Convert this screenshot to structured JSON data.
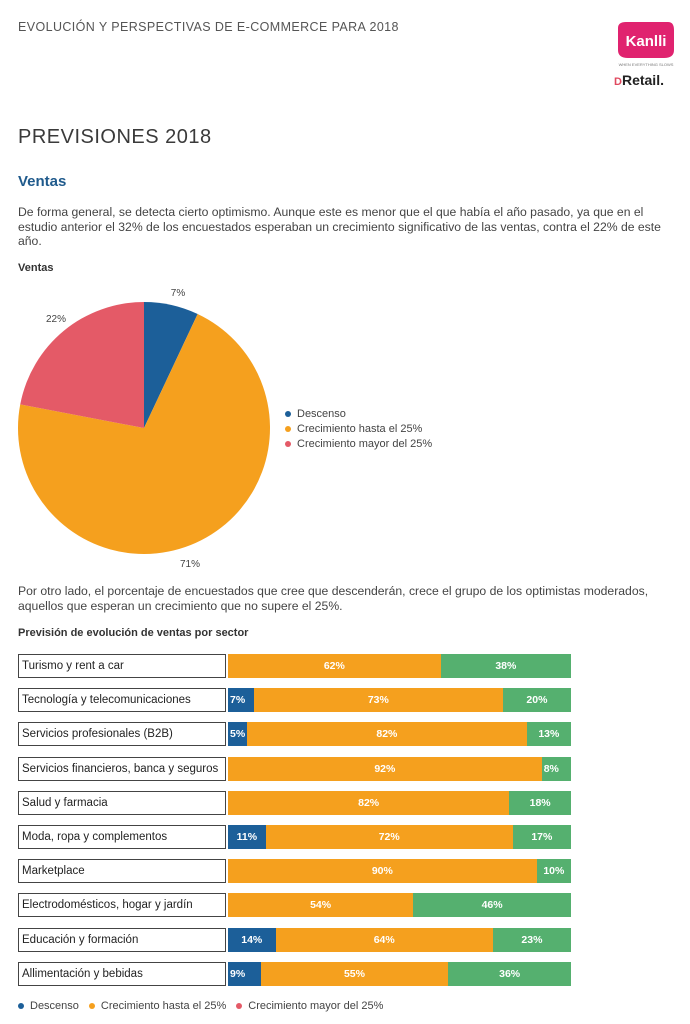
{
  "header": {
    "title": "EVOLUCIÓN Y PERSPECTIVAS DE E-COMMERCE PARA 2018",
    "logo_primary": "Kanlli",
    "logo_primary_tagline": "WHEN EVERYTHING SLOWS",
    "logo_secondary_prefix": "D",
    "logo_secondary": "Retail."
  },
  "page_title": "PREVISIONES 2018",
  "section_title": "Ventas",
  "paragraph1": "De forma general, se detecta cierto optimismo. Aunque este es menor  que el que había el año pasado, ya que en el estudio anterior el 32% de los encuestados esperaban un crecimiento significativo de las ventas, contra el 22% de este año.",
  "paragraph2": "Por otro lado, el porcentaje de encuestados que cree que descenderán, crece el grupo de los optimistas moderados, aquellos que esperan un crecimiento que no supere el 25%.",
  "colors": {
    "descenso": "#1c5f99",
    "crecimiento_hasta": "#f5a01e",
    "crecimiento_mayor": "#e45a67",
    "crecimiento_mayor_bars": "#55b06f"
  },
  "chart_data": [
    {
      "type": "pie",
      "title": "Ventas",
      "categories": [
        "Descenso",
        "Crecimiento hasta el 25%",
        "Crecimiento mayor del 25%"
      ],
      "values": [
        7,
        71,
        22
      ],
      "value_labels": [
        "7%",
        "71%",
        "22%"
      ],
      "legend": "right"
    },
    {
      "type": "bar",
      "orientation": "horizontal-stacked",
      "title": "Previsión de evolución de ventas por sector",
      "categories": [
        "Turismo y rent a car",
        "Tecnología y telecomunicaciones",
        "Servicios profesionales (B2B)",
        "Servicios financieros, banca y seguros",
        "Salud y farmacia",
        "Moda, ropa y complementos",
        "Marketplace",
        "Electrodomésticos, hogar y jardín",
        "Educación y formación",
        "Allimentación y bebidas"
      ],
      "series": [
        {
          "name": "Descenso",
          "values": [
            0,
            7,
            5,
            0,
            0,
            11,
            0,
            0,
            14,
            9
          ],
          "labels": [
            "",
            "7%",
            "5%",
            "",
            "",
            "11%",
            "",
            "",
            "14%",
            "9%"
          ]
        },
        {
          "name": "Crecimiento hasta el 25%",
          "values": [
            62,
            73,
            82,
            92,
            82,
            72,
            90,
            54,
            64,
            55
          ],
          "labels": [
            "62%",
            "73%",
            "82%",
            "92%",
            "82%",
            "72%",
            "90%",
            "54%",
            "64%",
            "55%"
          ]
        },
        {
          "name": "Crecimiento mayor del 25%",
          "values": [
            38,
            20,
            13,
            8,
            18,
            17,
            10,
            46,
            23,
            36
          ],
          "labels": [
            "38%",
            "20%",
            "13%",
            "8%",
            "18%",
            "17%",
            "10%",
            "46%",
            "23%",
            "36%"
          ]
        }
      ],
      "legend": "bottom"
    }
  ]
}
